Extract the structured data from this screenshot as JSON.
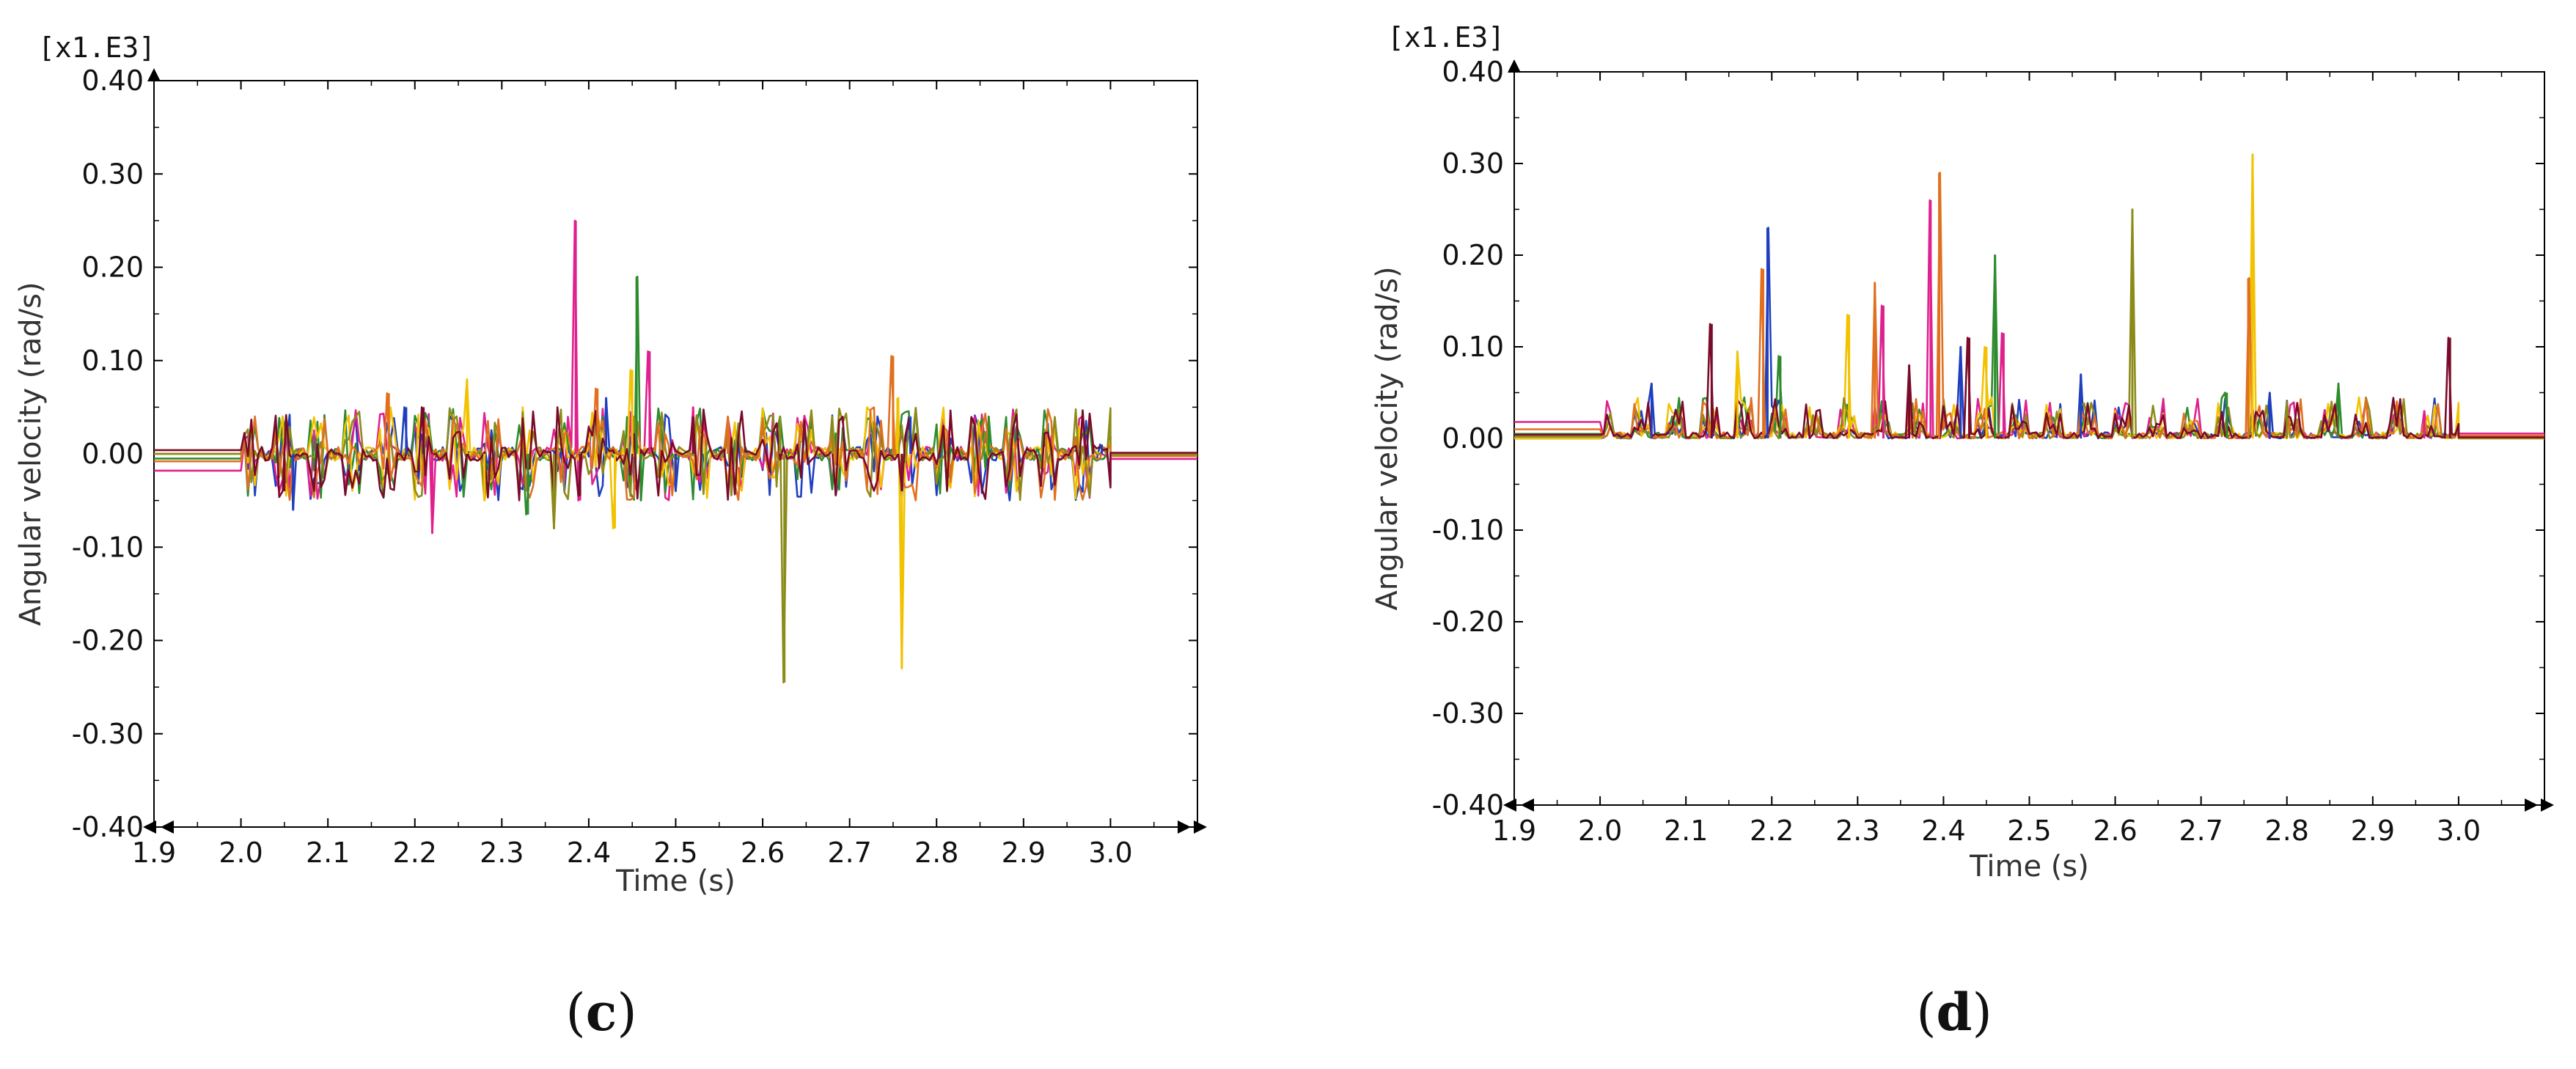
{
  "chart_data": [
    {
      "type": "line",
      "panel_label": "c",
      "multiplier_label": "[x1.E3]",
      "xlabel": "Time (s)",
      "ylabel": "Angular velocity (rad/s)",
      "xlim": [
        1.9,
        3.1
      ],
      "ylim": [
        -0.4,
        0.4
      ],
      "x_ticks": [
        1.9,
        2.0,
        2.1,
        2.2,
        2.3,
        2.4,
        2.5,
        2.6,
        2.7,
        2.8,
        2.9,
        3.0
      ],
      "x_tick_labels": [
        "1.9",
        "2.0",
        "2.1",
        "2.2",
        "2.3",
        "2.4",
        "2.5",
        "2.6",
        "2.7",
        "2.8",
        "2.9",
        "3.0"
      ],
      "y_ticks": [
        0.4,
        0.3,
        0.2,
        0.1,
        0.0,
        -0.1,
        -0.2,
        -0.3,
        -0.4
      ],
      "y_tick_labels": [
        "0.40",
        "0.30",
        "0.20",
        "0.10",
        "0.00",
        "-0.10",
        "-0.20",
        "-0.30",
        "-0.40"
      ],
      "grid": false,
      "colors": [
        "#1f3fbf",
        "#e0208e",
        "#2e8b2e",
        "#f2c200",
        "#8b8b1a",
        "#e07020",
        "#7a0a2a"
      ],
      "series": [
        {
          "color": "#1f3fbf",
          "baseline": 0.0,
          "x": [
            2.06,
            2.19,
            2.42,
            2.5,
            2.77,
            2.99
          ],
          "y": [
            -0.06,
            0.05,
            0.06,
            -0.04,
            0.04,
            0.01
          ]
        },
        {
          "color": "#e0208e",
          "baseline": -0.018,
          "x": [
            2.22,
            2.385,
            2.39,
            2.47,
            2.52
          ],
          "y": [
            -0.085,
            0.25,
            -0.05,
            0.11,
            0.05
          ]
        },
        {
          "color": "#2e8b2e",
          "baseline": -0.005,
          "x": [
            2.33,
            2.455,
            2.46,
            2.62,
            2.86
          ],
          "y": [
            -0.065,
            0.19,
            -0.05,
            0.04,
            0.04
          ]
        },
        {
          "color": "#f2c200",
          "baseline": 0.0,
          "x": [
            2.26,
            2.28,
            2.43,
            2.45,
            2.755,
            2.76
          ],
          "y": [
            0.08,
            -0.05,
            -0.08,
            0.09,
            0.06,
            -0.23
          ]
        },
        {
          "color": "#8b8b1a",
          "baseline": 0.0,
          "x": [
            2.36,
            2.62,
            2.625,
            2.68
          ],
          "y": [
            -0.08,
            0.04,
            -0.245,
            0.04
          ]
        },
        {
          "color": "#e07020",
          "baseline": -0.008,
          "x": [
            2.17,
            2.41,
            2.56,
            2.75
          ],
          "y": [
            0.065,
            0.07,
            0.04,
            0.105
          ]
        },
        {
          "color": "#7a0a2a",
          "baseline": 0.004,
          "x": [
            2.05,
            2.21,
            2.39,
            2.52,
            2.76,
            2.98
          ],
          "y": [
            -0.04,
            0.05,
            -0.045,
            0.04,
            -0.04,
            0.01
          ]
        }
      ]
    },
    {
      "type": "line",
      "panel_label": "d",
      "multiplier_label": "[x1.E3]",
      "xlabel": "Time (s)",
      "ylabel": "Angular velocity (rad/s)",
      "xlim": [
        1.9,
        3.1
      ],
      "ylim": [
        -0.4,
        0.4
      ],
      "x_ticks": [
        1.9,
        2.0,
        2.1,
        2.2,
        2.3,
        2.4,
        2.5,
        2.6,
        2.7,
        2.8,
        2.9,
        3.0
      ],
      "x_tick_labels": [
        "1.9",
        "2.0",
        "2.1",
        "2.2",
        "2.3",
        "2.4",
        "2.5",
        "2.6",
        "2.7",
        "2.8",
        "2.9",
        "3.0"
      ],
      "y_ticks": [
        0.4,
        0.3,
        0.2,
        0.1,
        0.0,
        -0.1,
        -0.2,
        -0.3,
        -0.4
      ],
      "y_tick_labels": [
        "0.40",
        "0.30",
        "0.20",
        "0.10",
        "0.00",
        "-0.10",
        "-0.20",
        "-0.30",
        "-0.40"
      ],
      "grid": false,
      "colors": [
        "#1f3fbf",
        "#e0208e",
        "#2e8b2e",
        "#f2c200",
        "#8b8b1a",
        "#e07020",
        "#7a0a2a"
      ],
      "series": [
        {
          "color": "#1f3fbf",
          "baseline": 0.0,
          "x": [
            2.06,
            2.195,
            2.42,
            2.56,
            2.78
          ],
          "y": [
            0.06,
            0.23,
            0.1,
            0.07,
            0.05
          ]
        },
        {
          "color": "#e0208e",
          "baseline": 0.018,
          "x": [
            2.33,
            2.385,
            2.47,
            2.96
          ],
          "y": [
            0.145,
            0.26,
            0.115,
            0.03
          ]
        },
        {
          "color": "#2e8b2e",
          "baseline": 0.005,
          "x": [
            2.21,
            2.46,
            2.73,
            2.86
          ],
          "y": [
            0.09,
            0.2,
            0.05,
            0.06
          ]
        },
        {
          "color": "#f2c200",
          "baseline": 0.0,
          "x": [
            2.16,
            2.29,
            2.45,
            2.76
          ],
          "y": [
            0.095,
            0.135,
            0.1,
            0.31
          ]
        },
        {
          "color": "#8b8b1a",
          "baseline": 0.002,
          "x": [
            2.62,
            2.8
          ],
          "y": [
            0.25,
            0.04
          ]
        },
        {
          "color": "#e07020",
          "baseline": 0.01,
          "x": [
            2.19,
            2.32,
            2.395,
            2.755
          ],
          "y": [
            0.185,
            0.17,
            0.29,
            0.175
          ]
        },
        {
          "color": "#7a0a2a",
          "baseline": 0.004,
          "x": [
            2.13,
            2.36,
            2.43,
            2.99
          ],
          "y": [
            0.125,
            0.08,
            0.11,
            0.11
          ]
        }
      ]
    }
  ]
}
